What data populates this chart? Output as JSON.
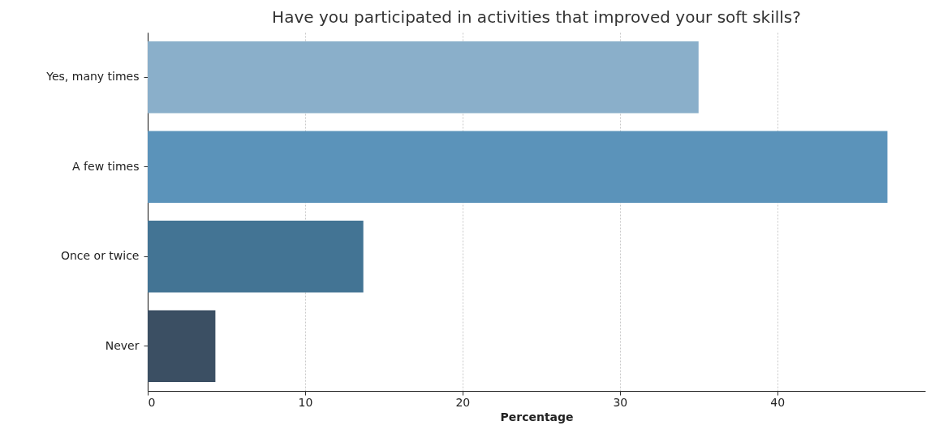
{
  "chart_data": {
    "type": "bar",
    "orientation": "horizontal",
    "title": "Have you participated in activities that improved your soft skills?",
    "xlabel": "Percentage",
    "categories": [
      "Yes, many times",
      "A few times",
      "Once or twice",
      "Never"
    ],
    "values": [
      35.0,
      47.0,
      13.7,
      4.3
    ],
    "colors": [
      "#8aafca",
      "#5b93ba",
      "#437494",
      "#3b4f63"
    ],
    "xlim": [
      0,
      49.4
    ],
    "xticks": [
      0,
      10,
      20,
      30,
      40
    ],
    "grid": "x"
  }
}
